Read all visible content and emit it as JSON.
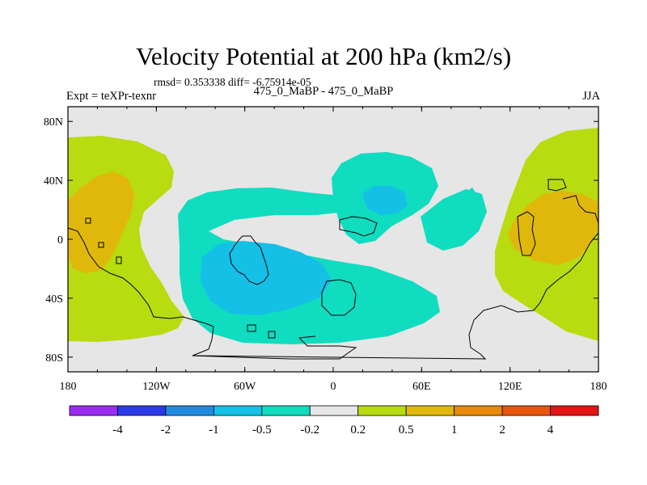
{
  "title": "Velocity Potential at 200 hPa (km2/s)",
  "stats": "rmsd= 0.353338 diff= -6.75914e-05",
  "experiment": "Expt = teXPr-texnr",
  "case": "475_0_MaBP - 475_0_MaBP",
  "season": "JJA",
  "lat_ticks": [
    "80N",
    "40N",
    "0",
    "40S",
    "80S"
  ],
  "lon_ticks": [
    "180",
    "120W",
    "60W",
    "0",
    "60E",
    "120E",
    "180"
  ],
  "colorbar": {
    "colors": [
      "#9a2cf0",
      "#2a3ae8",
      "#1e8be0",
      "#14c0e6",
      "#10dcc0",
      "#e6e6e6",
      "#b8dc10",
      "#e0b80c",
      "#e88a0a",
      "#e8560a",
      "#e21414"
    ],
    "labels": [
      "-4",
      "-2",
      "-1",
      "-0.5",
      "-0.2",
      "0.2",
      "0.5",
      "1",
      "2",
      "4"
    ]
  },
  "colors": {
    "background": "#e6e6e6",
    "neg_weak": "#10dcc0",
    "neg_mid": "#14c0e6",
    "pos_weak": "#b8dc10",
    "pos_mid": "#e0b80c"
  }
}
